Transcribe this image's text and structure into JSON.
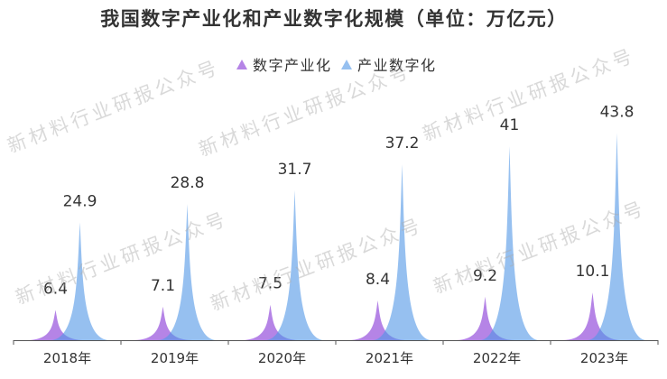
{
  "watermark": "新材料行业研报公众号",
  "chart_data": {
    "type": "bar",
    "bar_shape": "spike",
    "title": "我国数字产业化和产业数字化规模（单位：万亿元）",
    "categories": [
      "2018年",
      "2019年",
      "2020年",
      "2021年",
      "2022年",
      "2023年"
    ],
    "series": [
      {
        "name": "数字产业化",
        "values": [
          6.4,
          7.1,
          7.5,
          8.4,
          9.2,
          10.1
        ],
        "color": "#9650dc"
      },
      {
        "name": "产业数字化",
        "values": [
          24.9,
          28.8,
          31.7,
          37.2,
          41,
          43.8
        ],
        "color": "#5096e6"
      }
    ],
    "ylim": [
      0,
      50
    ],
    "grid": false,
    "legend": "top-center",
    "legend_symbol": "triangle"
  }
}
